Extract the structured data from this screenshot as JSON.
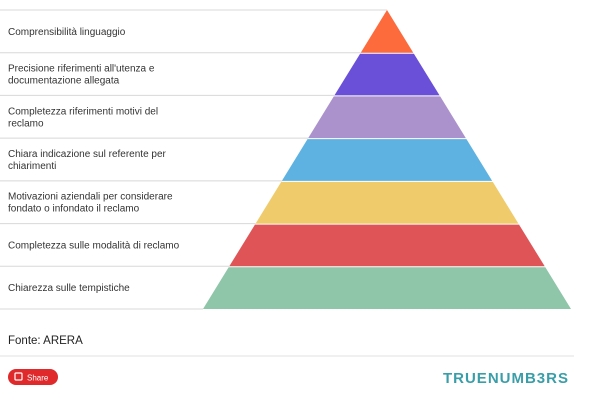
{
  "levels": [
    {
      "lines": [
        "Comprensibilità linguaggio"
      ]
    },
    {
      "lines": [
        "Precisione riferimenti all'utenza e",
        "documentazione allegata"
      ]
    },
    {
      "lines": [
        "Completezza riferimenti motivi del",
        "reclamo"
      ]
    },
    {
      "lines": [
        "Chiara indicazione sul referente per",
        "chiarimenti"
      ]
    },
    {
      "lines": [
        "Motivazioni aziendali per considerare",
        "fondato o infondato il reclamo"
      ]
    },
    {
      "lines": [
        "Completezza sulle modalità di reclamo"
      ]
    },
    {
      "lines": [
        "Chiarezza sulle tempistiche"
      ]
    }
  ],
  "source": "Fonte: ARERA",
  "share_button": "Share",
  "logo": "TRUENUMB3RS"
}
